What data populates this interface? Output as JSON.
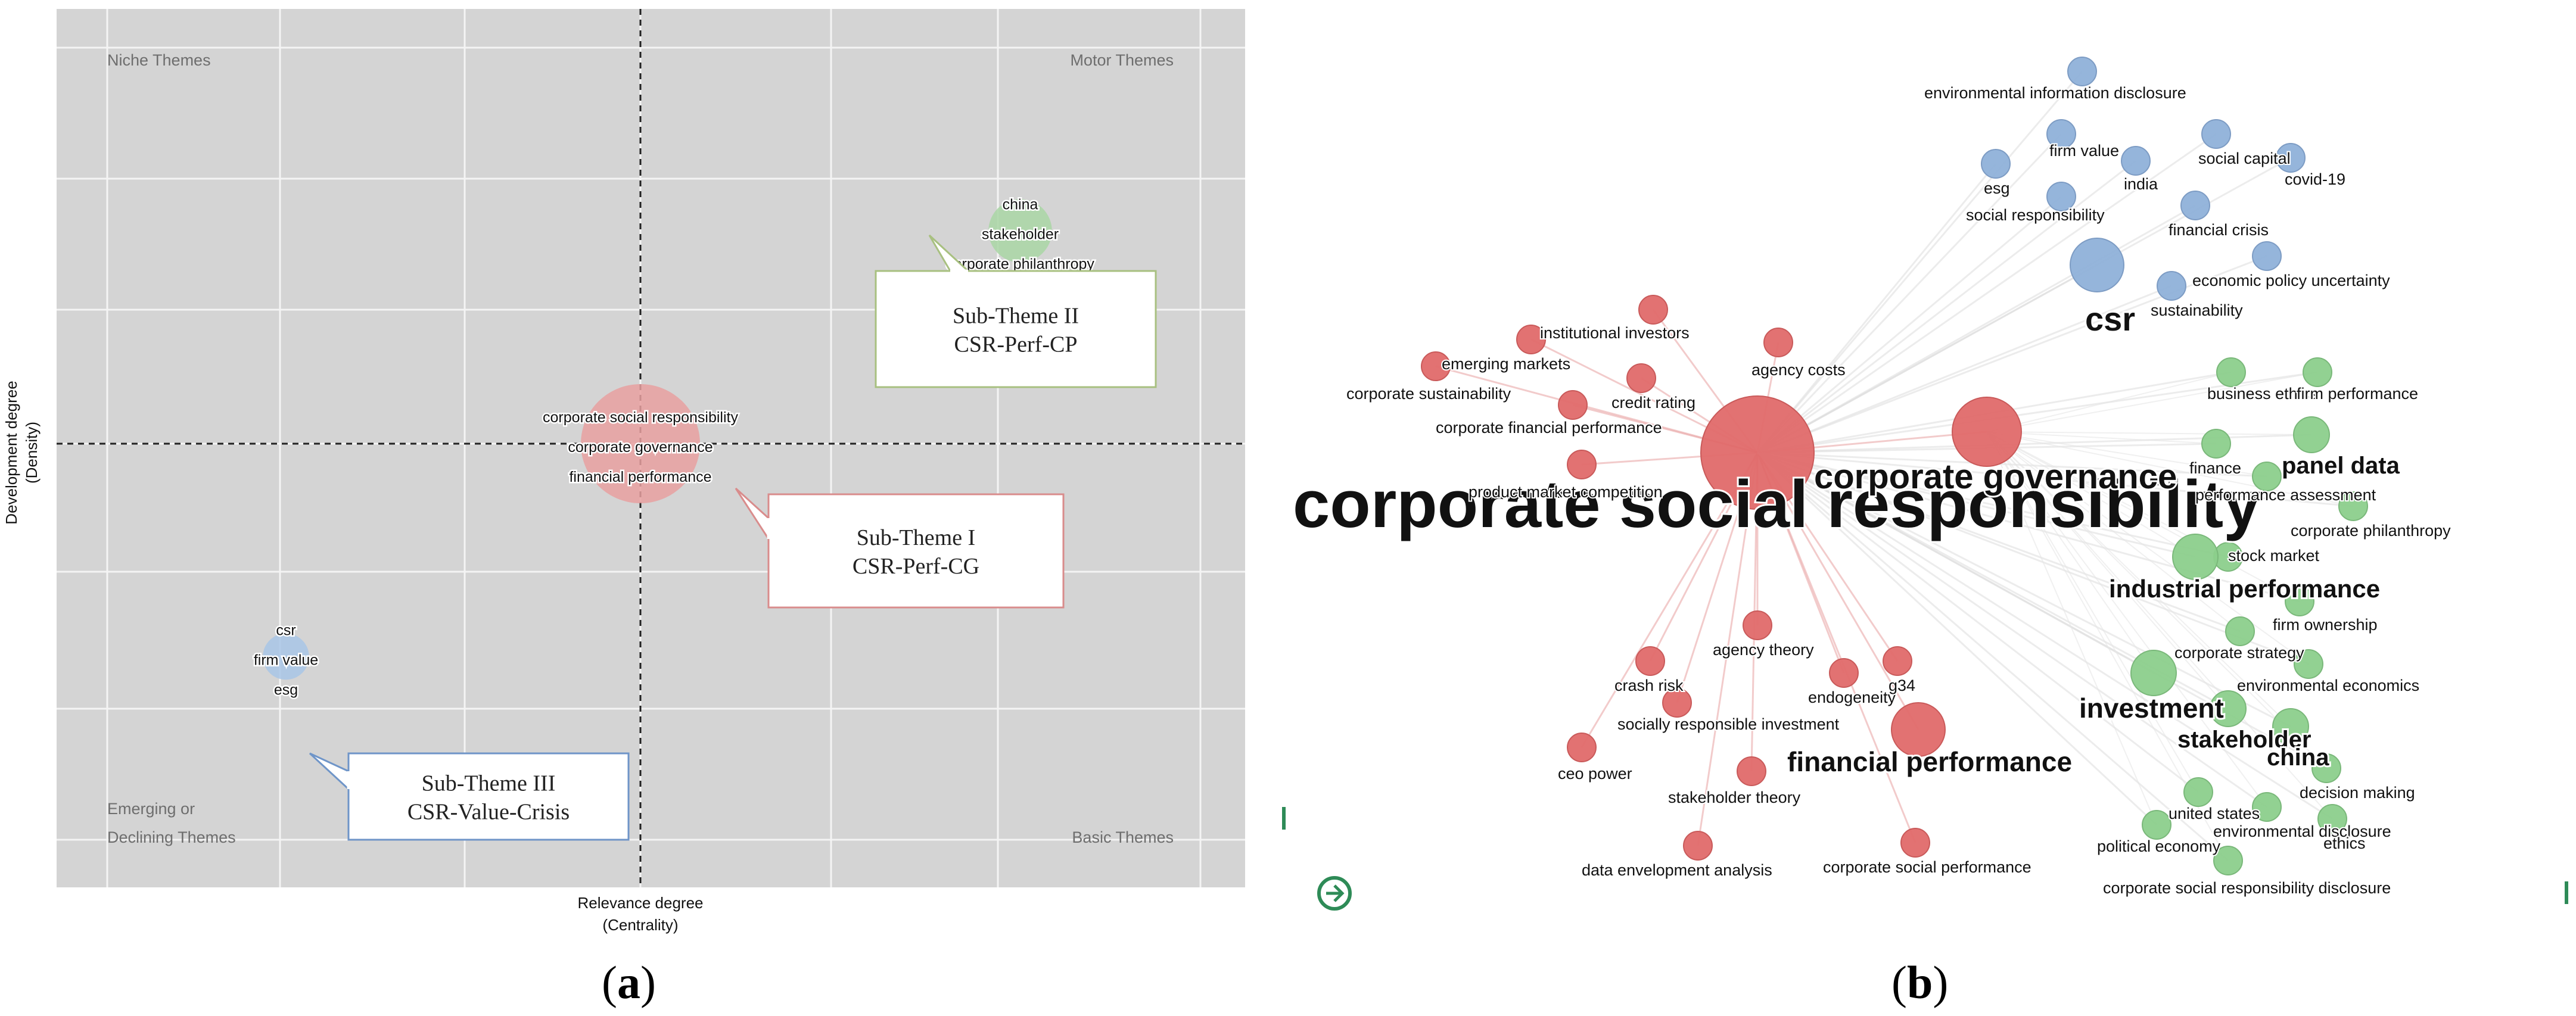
{
  "panels": [
    {
      "open": "(",
      "letter": "a",
      "close": ")"
    },
    {
      "open": "(",
      "letter": "b",
      "close": ")"
    }
  ],
  "chart_data": [
    {
      "type": "scatter",
      "title": "",
      "xlabel": [
        "Relevance degree",
        "(Centrality)"
      ],
      "ylabel": [
        "Development degree",
        "(Density)"
      ],
      "grid": true,
      "quadrants": {
        "top_left": [
          "Niche Themes"
        ],
        "top_right": [
          "Motor Themes"
        ],
        "bottom_left": [
          "Emerging or",
          "Declining Themes"
        ],
        "bottom_right": [
          "Basic Themes"
        ]
      },
      "clusters": [
        {
          "id": "cp",
          "color": "#a9d6a4",
          "x": 0.75,
          "y": 0.55,
          "size": 0.35,
          "labels": [
            "china",
            "stakeholder",
            "corporate philanthropy"
          ],
          "callout": {
            "lines": [
              "Sub-Theme II",
              "CSR-Perf-CP"
            ],
            "border": "#a8c080"
          }
        },
        {
          "id": "cg",
          "color": "#e8a0a0",
          "x": 0.0,
          "y": 0.0,
          "size": 1.0,
          "labels": [
            "corporate social responsibility",
            "corporate governance",
            "financial performance"
          ],
          "callout": {
            "lines": [
              "Sub-Theme I",
              "CSR-Perf-CG"
            ],
            "border": "#d98c8c"
          }
        },
        {
          "id": "crisis",
          "color": "#a8c6e6",
          "x": -0.7,
          "y": -0.55,
          "size": 0.15,
          "labels": [
            "csr",
            "firm value",
            "esg"
          ],
          "callout": {
            "lines": [
              "Sub-Theme III",
              "CSR-Value-Crisis"
            ],
            "border": "#6f95c8"
          }
        }
      ]
    },
    {
      "type": "network",
      "title": "",
      "clusters": {
        "red": "#e06a6a",
        "green": "#8ccf8c",
        "blue": "#8fb1d9"
      },
      "nodes": [
        {
          "label": "corporate social responsibility",
          "cluster": "red",
          "weight": 10
        },
        {
          "label": "corporate governance",
          "cluster": "red",
          "weight": 5
        },
        {
          "label": "financial performance",
          "cluster": "red",
          "weight": 4
        },
        {
          "label": "institutional investors",
          "cluster": "red",
          "weight": 1
        },
        {
          "label": "emerging markets",
          "cluster": "red",
          "weight": 1
        },
        {
          "label": "agency costs",
          "cluster": "red",
          "weight": 1
        },
        {
          "label": "credit rating",
          "cluster": "red",
          "weight": 1
        },
        {
          "label": "corporate sustainability",
          "cluster": "red",
          "weight": 1
        },
        {
          "label": "corporate financial performance",
          "cluster": "red",
          "weight": 1
        },
        {
          "label": "product market competition",
          "cluster": "red",
          "weight": 1
        },
        {
          "label": "agency theory",
          "cluster": "red",
          "weight": 1
        },
        {
          "label": "crash risk",
          "cluster": "red",
          "weight": 1
        },
        {
          "label": "endogeneity",
          "cluster": "red",
          "weight": 1
        },
        {
          "label": "g34",
          "cluster": "red",
          "weight": 1
        },
        {
          "label": "socially responsible investment",
          "cluster": "red",
          "weight": 1
        },
        {
          "label": "ceo power",
          "cluster": "red",
          "weight": 1
        },
        {
          "label": "stakeholder theory",
          "cluster": "red",
          "weight": 1
        },
        {
          "label": "data envelopment analysis",
          "cluster": "red",
          "weight": 1
        },
        {
          "label": "corporate social performance",
          "cluster": "red",
          "weight": 1
        },
        {
          "label": "environmental information disclosure",
          "cluster": "blue",
          "weight": 1
        },
        {
          "label": "firm value",
          "cluster": "blue",
          "weight": 1
        },
        {
          "label": "india",
          "cluster": "blue",
          "weight": 1
        },
        {
          "label": "social capital",
          "cluster": "blue",
          "weight": 1
        },
        {
          "label": "covid-19",
          "cluster": "blue",
          "weight": 1
        },
        {
          "label": "esg",
          "cluster": "blue",
          "weight": 1
        },
        {
          "label": "social responsibility",
          "cluster": "blue",
          "weight": 1
        },
        {
          "label": "financial crisis",
          "cluster": "blue",
          "weight": 1
        },
        {
          "label": "csr",
          "cluster": "blue",
          "weight": 4
        },
        {
          "label": "sustainability",
          "cluster": "blue",
          "weight": 1
        },
        {
          "label": "economic policy uncertainty",
          "cluster": "blue",
          "weight": 1
        },
        {
          "label": "business ethics",
          "cluster": "green",
          "weight": 1
        },
        {
          "label": "firm performance",
          "cluster": "green",
          "weight": 1
        },
        {
          "label": "panel data",
          "cluster": "green",
          "weight": 2
        },
        {
          "label": "finance",
          "cluster": "green",
          "weight": 1
        },
        {
          "label": "performance assessment",
          "cluster": "green",
          "weight": 1
        },
        {
          "label": "corporate philanthropy",
          "cluster": "green",
          "weight": 1
        },
        {
          "label": "stock market",
          "cluster": "green",
          "weight": 1
        },
        {
          "label": "industrial performance",
          "cluster": "green",
          "weight": 3
        },
        {
          "label": "firm ownership",
          "cluster": "green",
          "weight": 1
        },
        {
          "label": "corporate strategy",
          "cluster": "green",
          "weight": 1
        },
        {
          "label": "environmental economics",
          "cluster": "green",
          "weight": 1
        },
        {
          "label": "investment",
          "cluster": "green",
          "weight": 3
        },
        {
          "label": "stakeholder",
          "cluster": "green",
          "weight": 2
        },
        {
          "label": "china",
          "cluster": "green",
          "weight": 2
        },
        {
          "label": "decision making",
          "cluster": "green",
          "weight": 1
        },
        {
          "label": "united states",
          "cluster": "green",
          "weight": 1
        },
        {
          "label": "environmental disclosure",
          "cluster": "green",
          "weight": 1
        },
        {
          "label": "political economy",
          "cluster": "green",
          "weight": 1
        },
        {
          "label": "ethics",
          "cluster": "green",
          "weight": 1
        },
        {
          "label": "corporate social responsibility disclosure",
          "cluster": "green",
          "weight": 1
        }
      ]
    }
  ]
}
